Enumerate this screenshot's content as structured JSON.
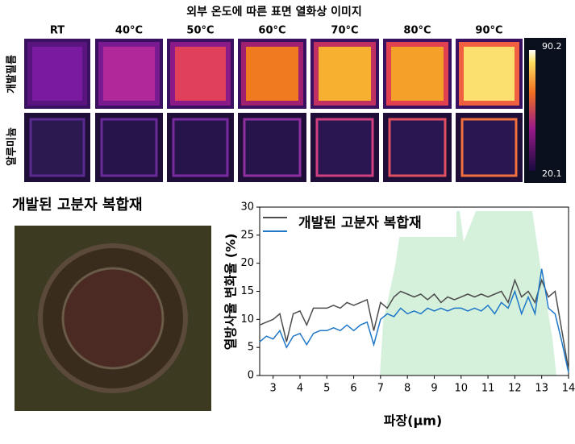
{
  "thermal": {
    "title": "외부 온도에 따른 표면 열화상 이미지",
    "columns": [
      "RT",
      "40°C",
      "50°C",
      "60°C",
      "70°C",
      "80°C",
      "90°C"
    ],
    "rows": [
      "개발필름",
      "알루미늄"
    ],
    "scale_max": "90.2",
    "scale_min": "20.1"
  },
  "photo": {
    "caption": "개발된 고분자 복합재"
  },
  "chart_data": {
    "type": "line",
    "xlabel": "파장(μm)",
    "ylabel": "열방사율 변화율 (%)",
    "x": [
      2.5,
      2.75,
      3,
      3.25,
      3.5,
      3.75,
      4,
      4.25,
      4.5,
      4.75,
      5,
      5.25,
      5.5,
      5.75,
      6,
      6.25,
      6.5,
      6.75,
      7,
      7.25,
      7.5,
      7.75,
      8,
      8.25,
      8.5,
      8.75,
      9,
      9.25,
      9.5,
      9.75,
      10,
      10.25,
      10.5,
      10.75,
      11,
      11.25,
      11.5,
      11.75,
      12,
      12.25,
      12.5,
      12.75,
      13,
      13.25,
      13.5,
      13.75,
      14
    ],
    "series": [
      {
        "name": "개발된 고분자 복합재",
        "color": "#4d4d4d",
        "values": [
          9,
          9.5,
          10,
          11,
          6,
          11,
          11.5,
          9,
          12,
          12,
          12,
          12.5,
          12,
          13,
          12.5,
          13,
          13.5,
          8,
          13,
          12,
          14,
          15,
          14.5,
          14,
          14.5,
          13.5,
          14.5,
          13,
          14,
          13.5,
          14,
          14.5,
          14,
          14.5,
          14,
          14.5,
          15,
          13,
          17,
          14,
          15,
          13,
          17,
          14,
          15,
          8,
          1
        ]
      },
      {
        "color": "#1f77c8",
        "values": [
          6,
          7,
          6.5,
          8,
          5,
          7,
          7.5,
          5.5,
          7.5,
          8,
          8,
          8.5,
          8,
          9,
          8,
          9,
          9.5,
          5.5,
          10,
          11,
          10.5,
          12,
          11,
          11.5,
          11,
          12,
          11.5,
          12,
          11.5,
          12,
          12,
          11.5,
          12,
          11.5,
          12.5,
          11,
          13,
          12,
          15,
          11,
          14,
          11,
          19,
          12,
          11,
          6,
          0.5
        ]
      }
    ],
    "xlim": [
      2.5,
      14
    ],
    "ylim": [
      0,
      30
    ],
    "xticks": [
      3,
      4,
      5,
      6,
      7,
      8,
      9,
      10,
      11,
      12,
      13,
      14
    ],
    "yticks": [
      0,
      5,
      10,
      15,
      20,
      25,
      30
    ]
  }
}
